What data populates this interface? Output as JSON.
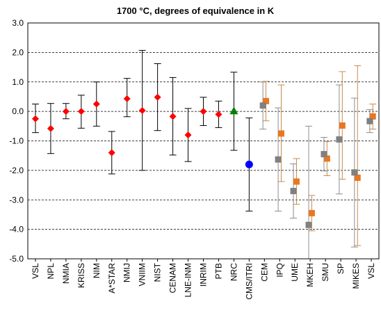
{
  "chart_data": {
    "type": "scatter",
    "title": "1700 °C, degrees of equivalence in K",
    "xlabel": "",
    "ylabel": "",
    "ylim": [
      -5.0,
      3.0
    ],
    "yticks": [
      "3.0",
      "2.0",
      "1.0",
      "0.0",
      "-1.0",
      "-2.0",
      "-3.0",
      "-4.0",
      "-5.0"
    ],
    "ytick_values": [
      3,
      2,
      1,
      0,
      -1,
      -2,
      -3,
      -4,
      -5
    ],
    "grid": "horizontal dashed",
    "categories": [
      "VSL",
      "NPL",
      "NMIA",
      "KRISS",
      "NIM",
      "A*STAR",
      "NMIJ",
      "VNIIM",
      "NIST",
      "CENAM",
      "LNE-INM",
      "INRIM",
      "PTB",
      "NRC",
      "CMS/ITRI",
      "CEM",
      "IPQ",
      "UME",
      "MKEH",
      "SMU",
      "SP",
      "MIKES",
      "VSL"
    ],
    "colors": {
      "red": "#ff0000",
      "green": "#008000",
      "blue": "#0000ff",
      "orange": "#e87722",
      "gray": "#808080",
      "orange_bar": "#c88a4a",
      "gray_bar": "#8c8c8c",
      "black_bar": "#000000",
      "grid": "#000000"
    },
    "series": [
      {
        "marker": "diamond",
        "color": "red",
        "points": [
          {
            "x": "VSL",
            "y": -0.25,
            "err_low": -0.72,
            "err_high": 0.25
          },
          {
            "x": "NPL",
            "y": -0.58,
            "err_low": -1.43,
            "err_high": 0.27
          },
          {
            "x": "NMIA",
            "y": 0.0,
            "err_low": -0.25,
            "err_high": 0.27
          },
          {
            "x": "KRISS",
            "y": 0.0,
            "err_low": -0.57,
            "err_high": 0.55
          },
          {
            "x": "NIM",
            "y": 0.25,
            "err_low": -0.5,
            "err_high": 1.0
          },
          {
            "x": "A*STAR",
            "y": -1.4,
            "err_low": -2.12,
            "err_high": -0.68
          },
          {
            "x": "NMIJ",
            "y": 0.43,
            "err_low": -0.18,
            "err_high": 1.12
          },
          {
            "x": "VNIIM",
            "y": 0.03,
            "err_low": -2.0,
            "err_high": 2.07
          },
          {
            "x": "NIST",
            "y": 0.48,
            "err_low": -0.65,
            "err_high": 1.62
          },
          {
            "x": "CENAM",
            "y": -0.17,
            "err_low": -1.48,
            "err_high": 1.15
          },
          {
            "x": "LNE-INM",
            "y": -0.8,
            "err_low": -1.7,
            "err_high": 0.1
          },
          {
            "x": "INRIM",
            "y": 0.0,
            "err_low": -0.48,
            "err_high": 0.48
          },
          {
            "x": "PTB",
            "y": -0.1,
            "err_low": -0.55,
            "err_high": 0.35
          }
        ]
      },
      {
        "marker": "triangle",
        "color": "green",
        "points": [
          {
            "x": "NRC",
            "y": 0.02,
            "err_low": -1.32,
            "err_high": 1.33
          }
        ]
      },
      {
        "marker": "circle",
        "color": "blue",
        "points": [
          {
            "x": "CMS/ITRI",
            "y": -1.8,
            "err_low": -3.38,
            "err_high": -0.22
          }
        ]
      },
      {
        "marker": "square",
        "color": "orange",
        "offset": 0.1,
        "points": [
          {
            "x": "CEM",
            "y": 0.35,
            "err_low": -0.32,
            "err_high": 1.02
          },
          {
            "x": "IPQ",
            "y": -0.75,
            "err_low": -2.38,
            "err_high": 0.9
          },
          {
            "x": "UME",
            "y": -2.38,
            "err_low": -3.15,
            "err_high": -1.6
          },
          {
            "x": "MKEH",
            "y": -3.45,
            "err_low": -4.05,
            "err_high": -2.85
          },
          {
            "x": "SMU",
            "y": -1.6,
            "err_low": -2.18,
            "err_high": -1.02
          },
          {
            "x": "SP",
            "y": -0.48,
            "err_low": -2.3,
            "err_high": 1.35
          },
          {
            "x": "MIKES",
            "y": -2.25,
            "err_low": -4.55,
            "err_high": 1.55
          },
          {
            "x": "VSL",
            "y": -0.17,
            "err_low": -0.6,
            "err_high": 0.25
          }
        ]
      },
      {
        "marker": "square",
        "color": "gray",
        "offset": -0.1,
        "points": [
          {
            "x": "CEM",
            "y": 0.2,
            "err_low": -0.6,
            "err_high": 1.0
          },
          {
            "x": "IPQ",
            "y": -1.63,
            "err_low": -3.38,
            "err_high": 0.12
          },
          {
            "x": "UME",
            "y": -2.7,
            "err_low": -3.62,
            "err_high": -1.78
          },
          {
            "x": "MKEH",
            "y": -3.85,
            "err_low": -7.2,
            "err_high": -0.5
          },
          {
            "x": "SMU",
            "y": -1.45,
            "err_low": -2.02,
            "err_high": -0.88
          },
          {
            "x": "SP",
            "y": -0.95,
            "err_low": -2.8,
            "err_high": 0.9
          },
          {
            "x": "MIKES",
            "y": -2.07,
            "err_low": -4.6,
            "err_high": 0.45
          },
          {
            "x": "VSL",
            "y": -0.33,
            "err_low": -0.72,
            "err_high": 0.06
          }
        ]
      }
    ]
  }
}
